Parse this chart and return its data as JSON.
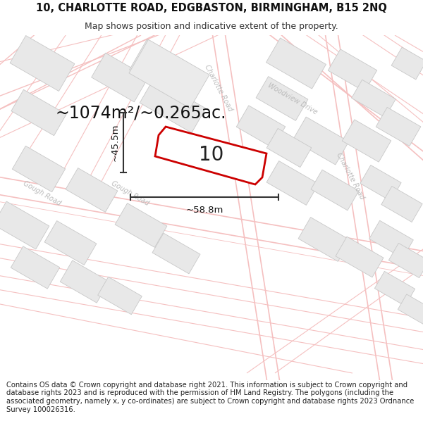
{
  "title": "10, CHARLOTTE ROAD, EDGBASTON, BIRMINGHAM, B15 2NQ",
  "subtitle": "Map shows position and indicative extent of the property.",
  "footer": "Contains OS data © Crown copyright and database right 2021. This information is subject to Crown copyright and database rights 2023 and is reproduced with the permission of HM Land Registry. The polygons (including the associated geometry, namely x, y co-ordinates) are subject to Crown copyright and database rights 2023 Ordnance Survey 100026316.",
  "area_label": "~1074m²/~0.265ac.",
  "width_label": "~58.8m",
  "height_label": "~45.5m",
  "property_number": "10",
  "map_bg": "#ffffff",
  "plot_bg": "#ffffff",
  "road_color": "#f5c0c0",
  "block_fill": "#e8e8e8",
  "block_edge": "#c8c8c8",
  "property_fill": "#ffffff",
  "property_edge": "#cc0000",
  "dim_color": "#333333",
  "road_label_color": "#bbbbbb",
  "title_fontsize": 10.5,
  "subtitle_fontsize": 9,
  "footer_fontsize": 7.2,
  "area_fontsize": 17,
  "dim_fontsize": 9.5,
  "property_num_fontsize": 20,
  "road_label_fontsize": 7
}
